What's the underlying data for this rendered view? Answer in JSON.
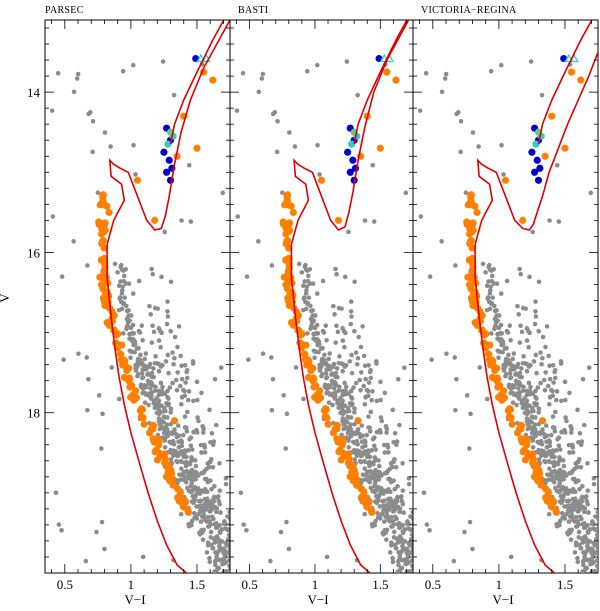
{
  "figure_labels": {
    "ylabel": "V",
    "xlabel": "V−I"
  },
  "colors": {
    "field_star": "#8c8c8c",
    "member_star": "#ff8000",
    "isochrone": "#e00000",
    "hb_blue": "#0000cc",
    "hb_teal": "#33cccc",
    "hb_green": "#66cc66",
    "triangle_cyan": "#33ccdd",
    "triangle_blue": "#0000cc"
  },
  "chart_data": [
    {
      "type": "scatter",
      "title": "PARSEC",
      "xlabel": "V−I",
      "ylabel": "V",
      "xlim": [
        0.35,
        1.75
      ],
      "ylim": [
        20.0,
        13.1
      ],
      "xticks": [
        "0.5",
        "1",
        "1.5"
      ],
      "yticks": [
        "14",
        "16",
        "18"
      ],
      "isochrone_x": [
        1.75,
        1.65,
        1.55,
        1.45,
        1.38,
        1.33,
        1.29,
        1.26,
        1.23,
        1.18,
        1.12,
        1.05,
        0.98,
        0.92,
        0.87,
        0.84,
        0.85,
        0.93,
        0.95,
        0.87,
        0.82,
        0.82,
        0.85,
        0.88,
        0.91,
        0.95,
        1.0,
        1.06,
        1.13,
        1.2,
        1.27,
        1.35,
        1.42
      ],
      "isochrone_y": [
        13.1,
        13.4,
        13.7,
        14.1,
        14.5,
        14.9,
        15.3,
        15.55,
        15.7,
        15.72,
        15.6,
        15.3,
        15.0,
        14.95,
        14.9,
        14.85,
        15.05,
        15.15,
        15.35,
        15.6,
        15.9,
        16.3,
        16.8,
        17.2,
        17.55,
        17.9,
        18.25,
        18.6,
        19.0,
        19.35,
        19.65,
        19.9,
        20.0
      ]
    },
    {
      "type": "scatter",
      "title": "BASTI",
      "xlabel": "V−I",
      "ylabel": "",
      "xlim": [
        0.35,
        1.75
      ],
      "ylim": [
        20.0,
        13.1
      ],
      "xticks": [
        "0.5",
        "1",
        "1.5"
      ],
      "yticks": [],
      "isochrone_x": [
        1.75,
        1.65,
        1.55,
        1.45,
        1.38,
        1.33,
        1.29,
        1.26,
        1.23,
        1.18,
        1.12,
        1.05,
        0.98,
        0.92,
        0.87,
        0.84,
        0.85,
        0.93,
        0.95,
        0.87,
        0.82,
        0.82,
        0.85,
        0.88,
        0.91,
        0.95,
        1.0,
        1.06,
        1.13,
        1.2,
        1.27,
        1.35,
        1.42
      ],
      "isochrone_y": [
        13.0,
        13.3,
        13.6,
        14.0,
        14.45,
        14.85,
        15.25,
        15.5,
        15.68,
        15.72,
        15.6,
        15.3,
        15.0,
        14.95,
        14.9,
        14.85,
        15.05,
        15.15,
        15.35,
        15.6,
        15.9,
        16.3,
        16.8,
        17.2,
        17.55,
        17.9,
        18.25,
        18.6,
        19.0,
        19.35,
        19.65,
        19.9,
        20.0
      ]
    },
    {
      "type": "scatter",
      "title": "VICTORIA−REGINA",
      "xlabel": "V−I",
      "ylabel": "",
      "xlim": [
        0.35,
        1.75
      ],
      "ylim": [
        20.0,
        13.1
      ],
      "xticks": [
        "0.5",
        "1",
        "1.5"
      ],
      "yticks": [],
      "isochrone_x": [
        1.75,
        1.68,
        1.6,
        1.52,
        1.45,
        1.38,
        1.33,
        1.29,
        1.26,
        1.23,
        1.18,
        1.12,
        1.05,
        0.98,
        0.92,
        0.87,
        0.84,
        0.85,
        0.93,
        0.95,
        0.87,
        0.82,
        0.82,
        0.85,
        0.88,
        0.91,
        0.95,
        1.0,
        1.06,
        1.13,
        1.2,
        1.27,
        1.35,
        1.42
      ],
      "isochrone_y": [
        13.5,
        13.8,
        14.1,
        14.4,
        14.7,
        15.0,
        15.3,
        15.5,
        15.65,
        15.72,
        15.7,
        15.6,
        15.3,
        15.0,
        14.95,
        14.9,
        14.85,
        15.05,
        15.15,
        15.35,
        15.6,
        15.9,
        16.3,
        16.8,
        17.2,
        17.55,
        17.9,
        18.25,
        18.6,
        19.0,
        19.35,
        19.65,
        19.9,
        20.0
      ]
    }
  ]
}
